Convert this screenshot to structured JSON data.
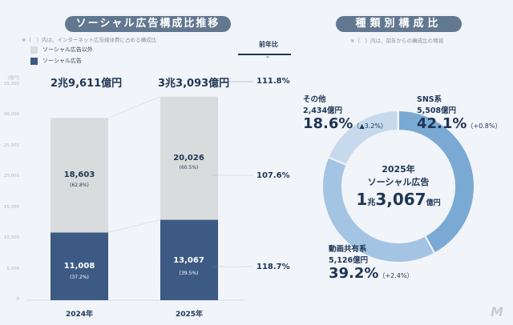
{
  "left_title": "ソーシャル広告構成比推移",
  "left_note": "※（　）内は、インターネット広告媒体費に占める構成比",
  "legend": [
    {
      "label": "ソーシャル広告以外",
      "color": "#d9dcdc"
    },
    {
      "label": "ソーシャル広告",
      "color": "#3d5a84"
    }
  ],
  "yoy_header": "前年比",
  "unit": "（億円）",
  "right_title": "種類別構成比",
  "right_note": "※（　）内は、前年からの構成比の増減",
  "chart_data": [
    {
      "type": "bar",
      "stacked": true,
      "categories": [
        "2024年",
        "2025年"
      ],
      "ylim": [
        0,
        35000
      ],
      "yticks": [
        "0",
        "5,000",
        "10,000",
        "15,000",
        "20,000",
        "25,000",
        "30,000",
        "35,000"
      ],
      "series": [
        {
          "name": "ソーシャル広告",
          "values": [
            11008,
            13067
          ],
          "value_labels": [
            "11,008",
            "13,067"
          ],
          "share_labels": [
            "(37.2%)",
            "(39.5%)"
          ],
          "color": "#3d5a84"
        },
        {
          "name": "ソーシャル広告以外",
          "values": [
            18603,
            20026
          ],
          "value_labels": [
            "18,603",
            "20,026"
          ],
          "share_labels": [
            "(62.8%)",
            "(60.5%)"
          ],
          "color": "#d9dcdc"
        }
      ],
      "totals": [
        "2兆9,611億円",
        "3兆3,093億円"
      ],
      "yoy": {
        "total": "111.8%",
        "other": "107.6%",
        "social": "118.7%"
      }
    },
    {
      "type": "pie",
      "donut": true,
      "center": {
        "year": "2025年",
        "label": "ソーシャル広告",
        "value_a": "1",
        "value_b": "兆",
        "value_c": "3,067",
        "value_d": "億円"
      },
      "slices": [
        {
          "name": "SNS系",
          "amount": "5,508億円",
          "percent": 42.1,
          "percent_label": "42.1%",
          "change": "（+0.8%）",
          "color": "#7aaad4"
        },
        {
          "name": "動画共有系",
          "amount": "5,126億円",
          "percent": 39.2,
          "percent_label": "39.2%",
          "change": "（+2.4%）",
          "color": "#a4c4e3"
        },
        {
          "name": "その他",
          "amount": "2,434億円",
          "percent": 18.6,
          "percent_label": "18.6%",
          "change": "（▲3.2%）",
          "color": "#c6d9ed"
        }
      ]
    }
  ]
}
